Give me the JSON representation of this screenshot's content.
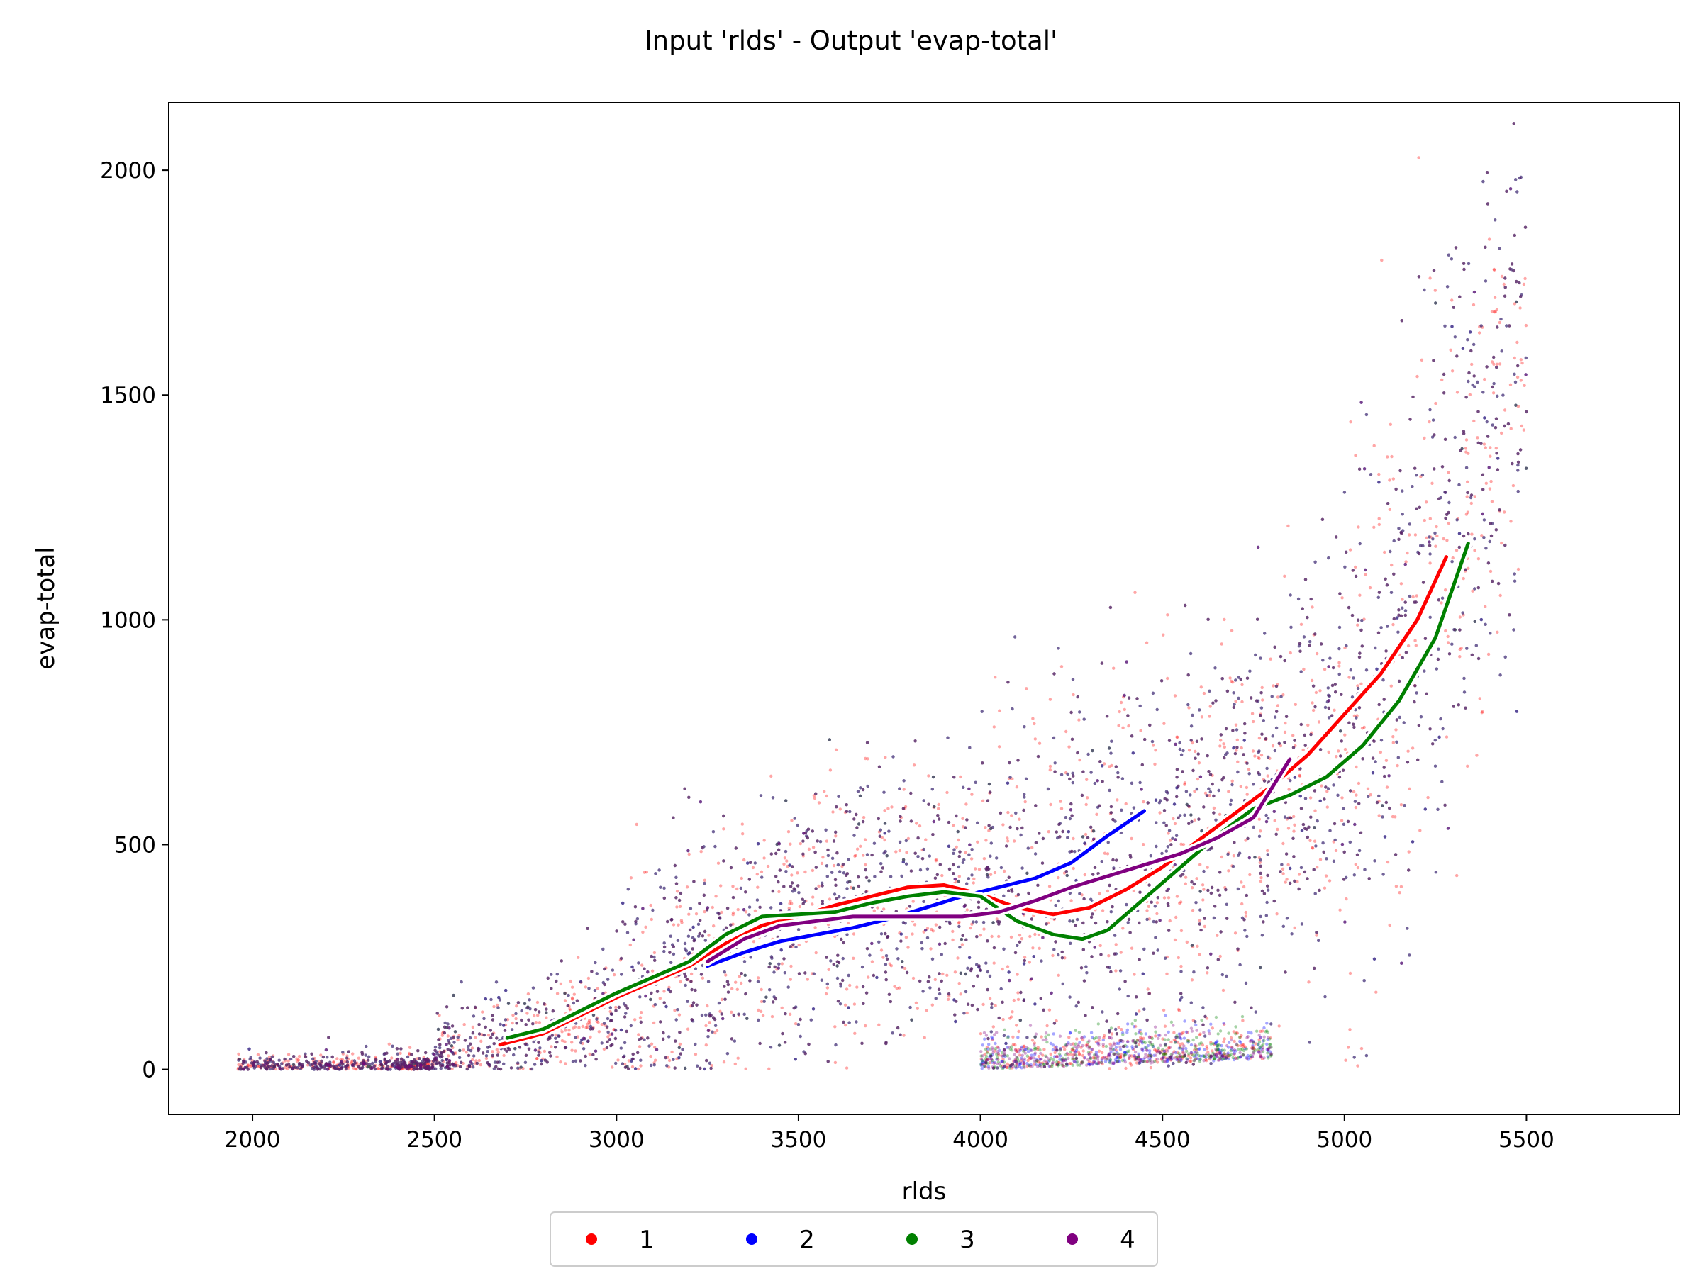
{
  "chart_data": {
    "type": "scatter",
    "title": "Input 'rlds' - Output 'evap-total'",
    "xlabel": "rlds",
    "ylabel": "evap-total",
    "xlim": [
      1770,
      5920
    ],
    "ylim": [
      -100,
      2150
    ],
    "xticks": [
      2000,
      2500,
      3000,
      3500,
      4000,
      4500,
      5000,
      5500
    ],
    "yticks": [
      0,
      500,
      1000,
      1500,
      2000
    ],
    "xtick_labels": [
      "2000",
      "2500",
      "3000",
      "3500",
      "4000",
      "4500",
      "5000",
      "5500"
    ],
    "ytick_labels": [
      "0",
      "500",
      "1000",
      "1500",
      "2000"
    ],
    "grid": false,
    "legend_position": "bottom-center",
    "series": [
      {
        "name": "1",
        "color": "#ff0000",
        "trend": [
          [
            2680,
            55
          ],
          [
            2800,
            80
          ],
          [
            2900,
            120
          ],
          [
            3000,
            160
          ],
          [
            3100,
            195
          ],
          [
            3200,
            230
          ],
          [
            3300,
            280
          ],
          [
            3400,
            320
          ],
          [
            3500,
            340
          ],
          [
            3600,
            365
          ],
          [
            3700,
            385
          ],
          [
            3800,
            405
          ],
          [
            3900,
            410
          ],
          [
            4000,
            390
          ],
          [
            4100,
            360
          ],
          [
            4200,
            345
          ],
          [
            4300,
            360
          ],
          [
            4400,
            400
          ],
          [
            4500,
            450
          ],
          [
            4600,
            510
          ],
          [
            4700,
            570
          ],
          [
            4800,
            630
          ],
          [
            4900,
            700
          ],
          [
            5000,
            790
          ],
          [
            5100,
            880
          ],
          [
            5200,
            1000
          ],
          [
            5280,
            1140
          ]
        ]
      },
      {
        "name": "2",
        "color": "#0000ff",
        "trend": [
          [
            3250,
            230
          ],
          [
            3350,
            260
          ],
          [
            3450,
            285
          ],
          [
            3550,
            300
          ],
          [
            3650,
            315
          ],
          [
            3750,
            335
          ],
          [
            3850,
            360
          ],
          [
            3950,
            385
          ],
          [
            4050,
            405
          ],
          [
            4150,
            425
          ],
          [
            4250,
            460
          ],
          [
            4350,
            520
          ],
          [
            4450,
            575
          ]
        ]
      },
      {
        "name": "3",
        "color": "#008000",
        "trend": [
          [
            2700,
            70
          ],
          [
            2800,
            90
          ],
          [
            2900,
            130
          ],
          [
            3000,
            170
          ],
          [
            3100,
            205
          ],
          [
            3200,
            240
          ],
          [
            3300,
            300
          ],
          [
            3400,
            340
          ],
          [
            3500,
            345
          ],
          [
            3600,
            350
          ],
          [
            3700,
            370
          ],
          [
            3800,
            385
          ],
          [
            3900,
            395
          ],
          [
            4000,
            385
          ],
          [
            4100,
            330
          ],
          [
            4200,
            300
          ],
          [
            4280,
            290
          ],
          [
            4350,
            310
          ],
          [
            4450,
            380
          ],
          [
            4550,
            450
          ],
          [
            4650,
            520
          ],
          [
            4750,
            580
          ],
          [
            4850,
            610
          ],
          [
            4950,
            650
          ],
          [
            5050,
            720
          ],
          [
            5150,
            820
          ],
          [
            5250,
            960
          ],
          [
            5340,
            1170
          ]
        ]
      },
      {
        "name": "4",
        "color": "#800080",
        "trend": [
          [
            3250,
            240
          ],
          [
            3350,
            290
          ],
          [
            3450,
            320
          ],
          [
            3550,
            330
          ],
          [
            3650,
            340
          ],
          [
            3750,
            340
          ],
          [
            3850,
            340
          ],
          [
            3950,
            340
          ],
          [
            4050,
            350
          ],
          [
            4150,
            375
          ],
          [
            4250,
            405
          ],
          [
            4350,
            430
          ],
          [
            4450,
            455
          ],
          [
            4550,
            480
          ],
          [
            4650,
            515
          ],
          [
            4750,
            560
          ],
          [
            4850,
            690
          ]
        ]
      }
    ]
  }
}
